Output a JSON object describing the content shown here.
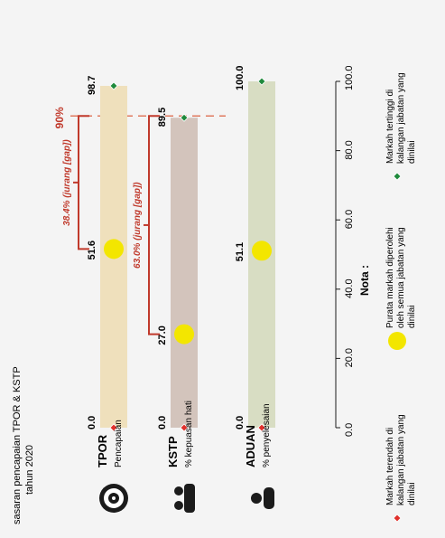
{
  "chart_data": {
    "type": "range-bar",
    "title_line1": "sasaran pencapaian TPOR & KSTP",
    "title_line2": "tahun 2020",
    "target_label": "90%",
    "target_value": 90,
    "axis": {
      "min": 0,
      "max": 100,
      "ticks": [
        "0.0",
        "20.0",
        "40.0",
        "60.0",
        "80.0",
        "100.0"
      ],
      "tick_values": [
        0,
        20,
        40,
        60,
        80,
        100
      ]
    },
    "rows": [
      {
        "name": "TPOR",
        "sub": "Pencapaian",
        "icon": "target-icon",
        "color": "#efe0bc",
        "min": 0.0,
        "min_label": "0.0",
        "avg": 51.6,
        "avg_label": "51.6",
        "max": 98.7,
        "max_label": "98.7",
        "gap_label": "38.4% (jurang [gap])"
      },
      {
        "name": "KSTP",
        "sub": "% kepuasan hati",
        "icon": "people-group-icon",
        "color": "#d3c4bc",
        "min": 0.0,
        "min_label": "0.0",
        "avg": 27.0,
        "avg_label": "27.0",
        "max": 89.5,
        "max_label": "89.5",
        "gap_label": "63.0% (jurang [gap])"
      },
      {
        "name": "ADUAN",
        "sub": "% penyelesaian",
        "icon": "complaint-person-icon",
        "color": "#d8ddc3",
        "min": 0.0,
        "min_label": "0.0",
        "avg": 51.1,
        "avg_label": "51.1",
        "max": 100.0,
        "max_label": "100.0",
        "gap_label": ""
      }
    ],
    "legend_title": "Nota :",
    "legend": [
      {
        "marker": "red-diamond",
        "label": "Markah terendah di kalangan jabatan yang dinilai"
      },
      {
        "marker": "yellow-circle",
        "label": "Purata markah diperolehi oleh semua jabatan yang dinilai"
      },
      {
        "marker": "green-diamond",
        "label": "Markah tertinggi di kalangan jabatan yang dinilai"
      }
    ],
    "colors": {
      "low": "#e0302b",
      "avg": "#f3e600",
      "high": "#1f8a3c",
      "gap": "#c0392b",
      "target": "#e07a5f"
    }
  }
}
